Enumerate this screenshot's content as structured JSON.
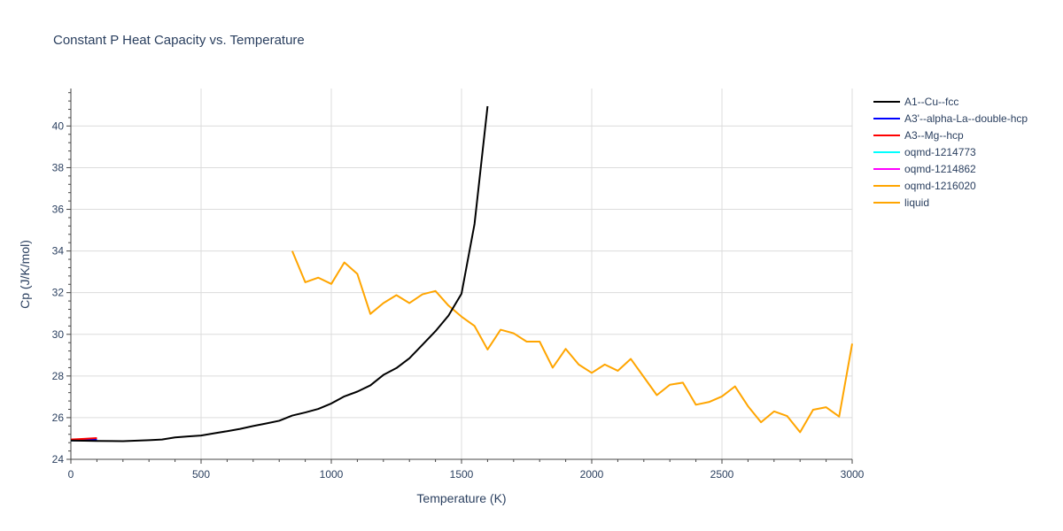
{
  "chart_data": {
    "type": "line",
    "title": "Constant P Heat Capacity vs. Temperature",
    "xlabel": "Temperature (K)",
    "ylabel": "Cp (J/K/mol)",
    "xlim": [
      0,
      3000
    ],
    "ylim": [
      24,
      41.8
    ],
    "xticks": [
      0,
      500,
      1000,
      1500,
      2000,
      2500,
      3000
    ],
    "yticks": [
      24,
      26,
      28,
      30,
      32,
      34,
      36,
      38,
      40
    ],
    "grid": true,
    "legend_position": "top-right",
    "series": [
      {
        "name": "A1--Cu--fcc",
        "color": "#000000",
        "x": [
          0,
          100,
          200,
          300,
          350,
          400,
          450,
          500,
          550,
          600,
          650,
          700,
          750,
          800,
          850,
          900,
          950,
          1000,
          1050,
          1100,
          1150,
          1200,
          1250,
          1300,
          1350,
          1400,
          1450,
          1500,
          1550,
          1600
        ],
        "y": [
          24.9,
          24.88,
          24.87,
          24.92,
          24.95,
          25.05,
          25.1,
          25.14,
          25.25,
          25.35,
          25.46,
          25.6,
          25.72,
          25.85,
          26.1,
          26.25,
          26.42,
          26.68,
          27.02,
          27.25,
          27.55,
          28.05,
          28.38,
          28.85,
          29.5,
          30.15,
          30.9,
          31.95,
          35.3,
          40.95
        ]
      },
      {
        "name": "A3'--alpha-La--double-hcp",
        "color": "#0000ff",
        "x": [
          0,
          50,
          100
        ],
        "y": [
          24.92,
          24.94,
          24.96
        ]
      },
      {
        "name": "A3--Mg--hcp",
        "color": "#ff0000",
        "x": [
          0,
          50,
          100
        ],
        "y": [
          24.95,
          24.98,
          25.02
        ]
      },
      {
        "name": "oqmd-1214773",
        "color": "#00ffff",
        "x": [
          0,
          50,
          100
        ],
        "y": [
          24.9,
          24.91,
          24.92
        ]
      },
      {
        "name": "oqmd-1214862",
        "color": "#ff00ff",
        "x": [
          0,
          50,
          100
        ],
        "y": [
          24.9,
          24.9,
          24.91
        ]
      },
      {
        "name": "oqmd-1216020",
        "color": "#ffa500",
        "x": [
          0,
          50,
          100
        ],
        "y": [
          24.9,
          24.91,
          24.92
        ]
      },
      {
        "name": "liquid",
        "color": "#ffa500",
        "x": [
          850,
          900,
          950,
          1000,
          1050,
          1100,
          1150,
          1200,
          1250,
          1300,
          1350,
          1400,
          1450,
          1500,
          1550,
          1600,
          1650,
          1700,
          1750,
          1800,
          1850,
          1900,
          1950,
          2000,
          2050,
          2100,
          2150,
          2200,
          2250,
          2300,
          2350,
          2400,
          2450,
          2500,
          2550,
          2600,
          2650,
          2700,
          2750,
          2800,
          2850,
          2900,
          2950,
          3000
        ],
        "y": [
          34.0,
          32.5,
          32.72,
          32.42,
          33.45,
          32.9,
          30.98,
          31.5,
          31.88,
          31.5,
          31.92,
          32.08,
          31.38,
          30.85,
          30.4,
          29.27,
          30.22,
          30.05,
          29.65,
          29.65,
          28.4,
          29.3,
          28.55,
          28.15,
          28.55,
          28.25,
          28.82,
          27.95,
          27.08,
          27.58,
          27.68,
          26.62,
          26.75,
          27.02,
          27.5,
          26.55,
          25.78,
          26.3,
          26.08,
          25.3,
          26.38,
          26.5,
          26.05,
          29.55
        ]
      }
    ]
  }
}
